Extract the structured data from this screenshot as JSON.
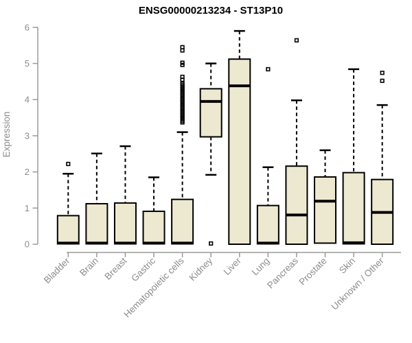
{
  "chart_data": {
    "type": "box",
    "title": "ENSG00000213234 - ST13P10",
    "ylabel": "Expression",
    "xlabel": "",
    "ylim": [
      0,
      6
    ],
    "y_ticks": [
      0,
      1,
      2,
      3,
      4,
      5,
      6
    ],
    "grid": "off",
    "legend": "none",
    "colors": {
      "box_fill": "#EDE8D0",
      "box_stroke": "#000000",
      "median": "#000000",
      "whisker": "#000000",
      "axis_line": "#9a9a9a",
      "axis_text": "#8c8c8c",
      "title": "#000000",
      "background": "#ffffff"
    },
    "categories": [
      "Bladder",
      "Brain",
      "Breast",
      "Gastric",
      "Hematopoietic cells",
      "Kidney",
      "Liver",
      "Lung",
      "Pancreas",
      "Prostate",
      "Skin",
      "Unknown / Other"
    ],
    "boxes": [
      {
        "label": "Bladder",
        "q1": 0.01,
        "median": 0.03,
        "q3": 0.79,
        "whisker_low": 0.01,
        "whisker_high": 1.95,
        "outliers": [
          2.22
        ]
      },
      {
        "label": "Brain",
        "q1": 0.01,
        "median": 0.03,
        "q3": 1.12,
        "whisker_low": 0.01,
        "whisker_high": 2.51,
        "outliers": []
      },
      {
        "label": "Breast",
        "q1": 0.01,
        "median": 0.03,
        "q3": 1.14,
        "whisker_low": 0.01,
        "whisker_high": 2.71,
        "outliers": []
      },
      {
        "label": "Gastric",
        "q1": 0.01,
        "median": 0.03,
        "q3": 0.91,
        "whisker_low": 0.01,
        "whisker_high": 1.85,
        "outliers": []
      },
      {
        "label": "Hematopoietic cells",
        "q1": 0.01,
        "median": 0.03,
        "q3": 1.24,
        "whisker_low": 0.01,
        "whisker_high": 3.1,
        "outliers": [
          3.37,
          3.41,
          3.45,
          3.49,
          3.53,
          3.57,
          3.61,
          3.65,
          3.69,
          3.73,
          3.77,
          3.81,
          3.85,
          3.89,
          3.93,
          3.97,
          4.01,
          4.05,
          4.09,
          4.13,
          4.17,
          4.21,
          4.25,
          4.29,
          4.33,
          4.37,
          4.41,
          4.45,
          4.55,
          4.63,
          4.96,
          5.02,
          5.36,
          5.45
        ]
      },
      {
        "label": "Kidney",
        "q1": 2.97,
        "median": 3.95,
        "q3": 4.3,
        "whisker_low": 1.92,
        "whisker_high": 5.0,
        "outliers": [
          0.02
        ]
      },
      {
        "label": "Liver",
        "q1": 0.0,
        "median": 4.38,
        "q3": 5.12,
        "whisker_low": 0.0,
        "whisker_high": 5.9,
        "outliers": []
      },
      {
        "label": "Lung",
        "q1": 0.01,
        "median": 0.03,
        "q3": 1.07,
        "whisker_low": 0.01,
        "whisker_high": 2.13,
        "outliers": [
          4.84
        ]
      },
      {
        "label": "Pancreas",
        "q1": 0.0,
        "median": 0.81,
        "q3": 2.16,
        "whisker_low": 0.0,
        "whisker_high": 3.98,
        "outliers": [
          5.64
        ]
      },
      {
        "label": "Prostate",
        "q1": 0.03,
        "median": 1.19,
        "q3": 1.86,
        "whisker_low": 0.03,
        "whisker_high": 2.6,
        "outliers": []
      },
      {
        "label": "Skin",
        "q1": 0.01,
        "median": 0.04,
        "q3": 1.98,
        "whisker_low": 0.01,
        "whisker_high": 4.84,
        "outliers": []
      },
      {
        "label": "Unknown / Other",
        "q1": 0.0,
        "median": 0.88,
        "q3": 1.79,
        "whisker_low": 0.0,
        "whisker_high": 3.85,
        "outliers": [
          4.74,
          4.52
        ]
      }
    ]
  }
}
